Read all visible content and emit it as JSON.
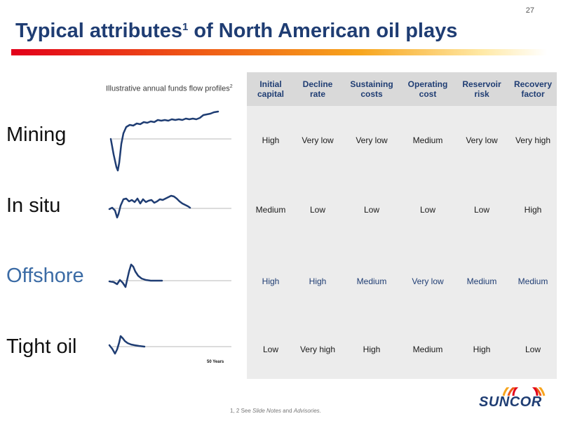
{
  "page_number": "27",
  "title": {
    "main": "Typical attributes",
    "sup": "1",
    "rest": " of North American oil plays"
  },
  "flow_caption": {
    "text": "Illustrative annual funds flow profiles",
    "sup": "2"
  },
  "columns": [
    {
      "line1": "Initial",
      "line2": "capital"
    },
    {
      "line1": "Decline",
      "line2": "rate"
    },
    {
      "line1": "Sustaining",
      "line2": "costs"
    },
    {
      "line1": "Operating",
      "line2": "cost"
    },
    {
      "line1": "Reservoir",
      "line2": "risk"
    },
    {
      "line1": "Recovery",
      "line2": "factor"
    }
  ],
  "rows": [
    {
      "label": "Mining",
      "values": [
        "High",
        "Very low",
        "Very low",
        "Medium",
        "Very low",
        "Very high"
      ]
    },
    {
      "label": "In situ",
      "values": [
        "Medium",
        "Low",
        "Low",
        "Low",
        "Low",
        "High"
      ]
    },
    {
      "label": "Offshore",
      "values": [
        "High",
        "High",
        "Medium",
        "Very low",
        "Medium",
        "Medium"
      ]
    },
    {
      "label": "Tight oil",
      "values": [
        "Low",
        "Very high",
        "High",
        "Medium",
        "High",
        "Low"
      ]
    }
  ],
  "years_label": "50 Years",
  "footnote": {
    "prefix": "1, 2 See ",
    "slide_notes": "Slide Notes",
    "and": " and ",
    "advisories": "Advisories."
  },
  "logo": {
    "text": "SUNCOR"
  },
  "colors": {
    "title": "#1f3d73",
    "accent_red": "#e2001a",
    "accent_orange": "#f7a51d",
    "table_bg": "#ececec",
    "header_bg": "#d9d9d9"
  }
}
